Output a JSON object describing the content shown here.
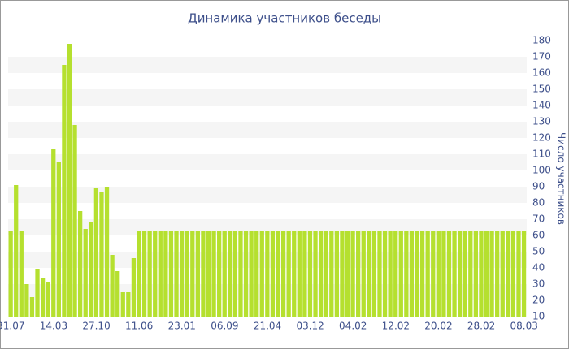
{
  "chart_data": {
    "type": "bar",
    "title": "Динамика участников беседы",
    "y_axis_label": "Число участников",
    "categories": [
      "31.07",
      null,
      null,
      null,
      null,
      null,
      null,
      null,
      "14.03",
      null,
      null,
      null,
      null,
      null,
      null,
      null,
      "27.10",
      null,
      null,
      null,
      null,
      null,
      null,
      null,
      "11.06",
      null,
      null,
      null,
      null,
      null,
      null,
      null,
      "23.01",
      null,
      null,
      null,
      null,
      null,
      null,
      null,
      "06.09",
      null,
      null,
      null,
      null,
      null,
      null,
      null,
      "21.04",
      null,
      null,
      null,
      null,
      null,
      null,
      null,
      "03.12",
      null,
      null,
      null,
      null,
      null,
      null,
      null,
      "04.02",
      null,
      null,
      null,
      null,
      null,
      null,
      null,
      "12.02",
      null,
      null,
      null,
      null,
      null,
      null,
      null,
      "20.02",
      null,
      null,
      null,
      null,
      null,
      null,
      null,
      "28.02",
      null,
      null,
      null,
      null,
      null,
      null,
      null,
      "08.03"
    ],
    "values": [
      63,
      91,
      63,
      30,
      22,
      39,
      34,
      31,
      113,
      105,
      165,
      178,
      128,
      75,
      64,
      68,
      89,
      87,
      90,
      48,
      38,
      25,
      25,
      46,
      63,
      63,
      63,
      63,
      63,
      63,
      63,
      63,
      63,
      63,
      63,
      63,
      63,
      63,
      63,
      63,
      63,
      63,
      63,
      63,
      63,
      63,
      63,
      63,
      63,
      63,
      63,
      63,
      63,
      63,
      63,
      63,
      63,
      63,
      63,
      63,
      63,
      63,
      63,
      63,
      63,
      63,
      63,
      63,
      63,
      63,
      63,
      63,
      63,
      63,
      63,
      63,
      63,
      63,
      63,
      63,
      63,
      63,
      63,
      63,
      63,
      63,
      63,
      63,
      63,
      63,
      63,
      63,
      63,
      63,
      63,
      63,
      63
    ],
    "color": "#b5e02f",
    "ylim": [
      10,
      180
    ],
    "yticks": [
      10,
      20,
      30,
      40,
      50,
      60,
      70,
      80,
      90,
      100,
      110,
      120,
      130,
      140,
      150,
      160,
      170,
      180
    ],
    "grid": true
  }
}
